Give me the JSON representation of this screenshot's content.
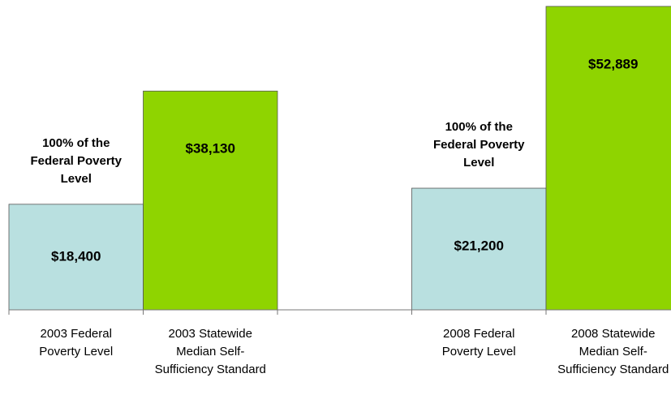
{
  "chart_data": {
    "type": "bar",
    "categories": [
      "2003 Federal Poverty Level",
      "2003 Statewide Median Self-Sufficiency Standard",
      null,
      "2008 Federal Poverty Level",
      "2008 Statewide Median Self-Sufficiency Standard"
    ],
    "values": [
      18400,
      38130,
      null,
      21200,
      52889
    ],
    "value_labels": [
      "$18,400",
      "$38,130",
      null,
      "$21,200",
      "$52,889"
    ],
    "colors": [
      "#b9e0e0",
      "#8fd400",
      null,
      "#b9e0e0",
      "#8fd400"
    ],
    "annotations": [
      "100% of the Federal Poverty Level",
      "100% of the Federal Poverty Level"
    ],
    "ylim": [
      0,
      54000
    ]
  }
}
